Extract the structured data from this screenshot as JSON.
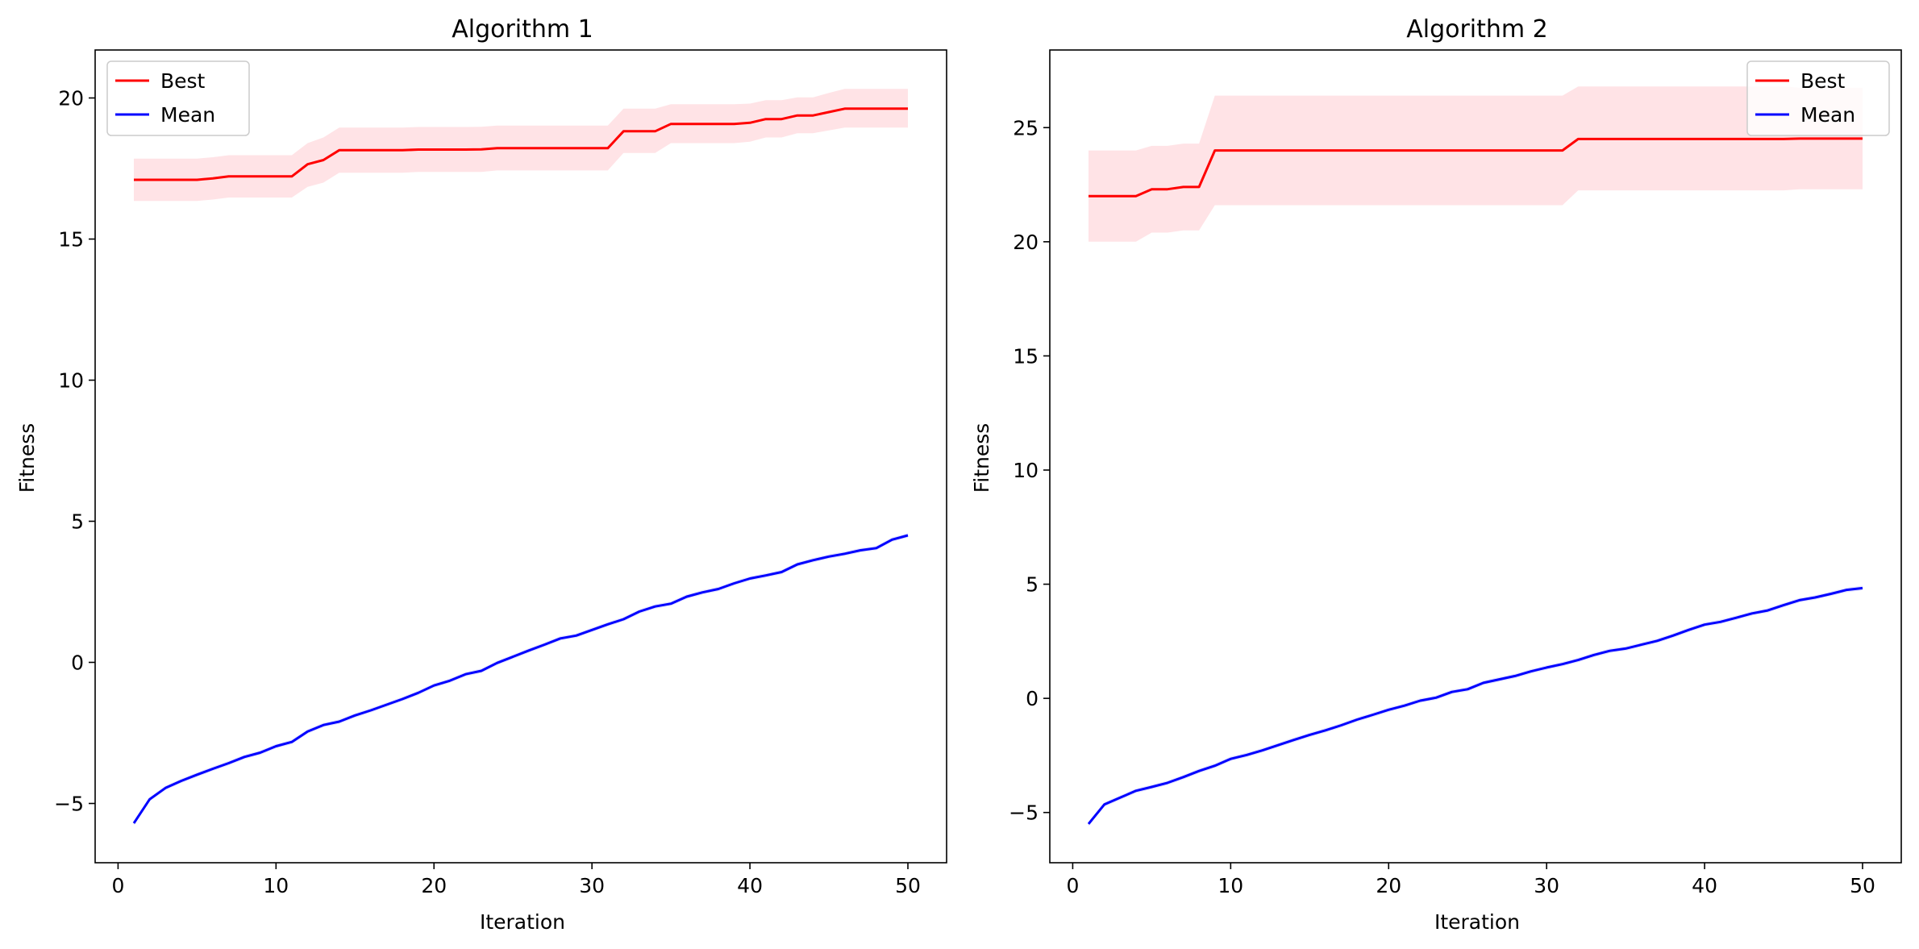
{
  "colors": {
    "best": "#ff0000",
    "mean": "#0000ff",
    "best_band": "#ffe3e6",
    "mean_band": "#e6e6ff"
  },
  "chart_data": [
    {
      "type": "line",
      "title": "Algorithm 1",
      "xlabel": "Iteration",
      "ylabel": "Fitness",
      "xlim": [
        -1.45,
        52.45
      ],
      "ylim": [
        -7.1,
        21.7
      ],
      "xticks": [
        0,
        10,
        20,
        30,
        40,
        50
      ],
      "yticks": [
        -5,
        0,
        5,
        10,
        15,
        20
      ],
      "legend": {
        "position": "top-left",
        "entries": [
          "Best",
          "Mean"
        ]
      },
      "grid": false,
      "x": [
        1,
        2,
        3,
        4,
        5,
        6,
        7,
        8,
        9,
        10,
        11,
        12,
        13,
        14,
        15,
        16,
        17,
        18,
        19,
        20,
        21,
        22,
        23,
        24,
        25,
        26,
        27,
        28,
        29,
        30,
        31,
        32,
        33,
        34,
        35,
        36,
        37,
        38,
        39,
        40,
        41,
        42,
        43,
        44,
        45,
        46,
        47,
        48,
        49,
        50
      ],
      "series": [
        {
          "name": "Best",
          "color": "#ff0000",
          "values": [
            17.1,
            17.1,
            17.1,
            17.1,
            17.1,
            17.15,
            17.22,
            17.22,
            17.22,
            17.22,
            17.22,
            17.65,
            17.8,
            18.15,
            18.15,
            18.15,
            18.15,
            18.15,
            18.17,
            18.17,
            18.17,
            18.17,
            18.18,
            18.22,
            18.22,
            18.22,
            18.22,
            18.22,
            18.22,
            18.22,
            18.22,
            18.82,
            18.82,
            18.82,
            19.08,
            19.08,
            19.08,
            19.08,
            19.08,
            19.12,
            19.25,
            19.25,
            19.38,
            19.38,
            19.5,
            19.62,
            19.62,
            19.62,
            19.62,
            19.62
          ],
          "lower": [
            16.35,
            16.35,
            16.35,
            16.35,
            16.35,
            16.4,
            16.47,
            16.47,
            16.47,
            16.47,
            16.47,
            16.85,
            17.0,
            17.35,
            17.35,
            17.35,
            17.35,
            17.35,
            17.38,
            17.38,
            17.38,
            17.38,
            17.38,
            17.43,
            17.43,
            17.43,
            17.43,
            17.43,
            17.43,
            17.43,
            17.43,
            18.05,
            18.05,
            18.05,
            18.4,
            18.4,
            18.4,
            18.4,
            18.4,
            18.45,
            18.6,
            18.6,
            18.75,
            18.75,
            18.85,
            18.95,
            18.95,
            18.95,
            18.95,
            18.95
          ],
          "upper": [
            17.85,
            17.85,
            17.85,
            17.85,
            17.85,
            17.9,
            17.97,
            17.97,
            17.97,
            17.97,
            17.97,
            18.4,
            18.6,
            18.95,
            18.95,
            18.95,
            18.95,
            18.95,
            18.97,
            18.97,
            18.97,
            18.97,
            18.98,
            19.02,
            19.02,
            19.02,
            19.02,
            19.02,
            19.02,
            19.02,
            19.02,
            19.62,
            19.62,
            19.62,
            19.78,
            19.78,
            19.78,
            19.78,
            19.78,
            19.8,
            19.92,
            19.92,
            20.02,
            20.02,
            20.18,
            20.32,
            20.32,
            20.32,
            20.32,
            20.32
          ]
        },
        {
          "name": "Mean",
          "color": "#0000ff",
          "values": [
            -5.7,
            -4.85,
            -4.45,
            -4.2,
            -3.98,
            -3.77,
            -3.57,
            -3.35,
            -3.2,
            -2.97,
            -2.82,
            -2.45,
            -2.22,
            -2.1,
            -1.88,
            -1.7,
            -1.5,
            -1.3,
            -1.08,
            -0.82,
            -0.65,
            -0.42,
            -0.3,
            -0.02,
            0.2,
            0.42,
            0.63,
            0.85,
            0.95,
            1.15,
            1.35,
            1.53,
            1.8,
            1.98,
            2.08,
            2.33,
            2.48,
            2.6,
            2.8,
            2.97,
            3.08,
            3.2,
            3.47,
            3.62,
            3.75,
            3.85,
            3.97,
            4.05,
            4.35,
            4.5
          ],
          "band": 0.08
        }
      ]
    },
    {
      "type": "line",
      "title": "Algorithm 2",
      "xlabel": "Iteration",
      "ylabel": "Fitness",
      "xlim": [
        -1.45,
        52.45
      ],
      "ylim": [
        -7.2,
        28.4
      ],
      "xticks": [
        0,
        10,
        20,
        30,
        40,
        50
      ],
      "yticks": [
        -5,
        0,
        5,
        10,
        15,
        20,
        25
      ],
      "legend": {
        "position": "top-right",
        "entries": [
          "Best",
          "Mean"
        ]
      },
      "grid": false,
      "x": [
        1,
        2,
        3,
        4,
        5,
        6,
        7,
        8,
        9,
        10,
        11,
        12,
        13,
        14,
        15,
        16,
        17,
        18,
        19,
        20,
        21,
        22,
        23,
        24,
        25,
        26,
        27,
        28,
        29,
        30,
        31,
        32,
        33,
        34,
        35,
        36,
        37,
        38,
        39,
        40,
        41,
        42,
        43,
        44,
        45,
        46,
        47,
        48,
        49,
        50
      ],
      "series": [
        {
          "name": "Best",
          "color": "#ff0000",
          "values": [
            22.0,
            22.0,
            22.0,
            22.0,
            22.3,
            22.3,
            22.4,
            22.4,
            24.0,
            24.0,
            24.0,
            24.0,
            24.0,
            24.0,
            24.0,
            24.0,
            24.0,
            24.0,
            24.0,
            24.0,
            24.0,
            24.0,
            24.0,
            24.0,
            24.0,
            24.0,
            24.0,
            24.0,
            24.0,
            24.0,
            24.0,
            24.5,
            24.5,
            24.5,
            24.5,
            24.5,
            24.5,
            24.5,
            24.5,
            24.5,
            24.5,
            24.5,
            24.5,
            24.5,
            24.5,
            24.52,
            24.52,
            24.52,
            24.52,
            24.52
          ],
          "lower": [
            20.0,
            20.0,
            20.0,
            20.0,
            20.4,
            20.4,
            20.5,
            20.5,
            21.6,
            21.6,
            21.6,
            21.6,
            21.6,
            21.6,
            21.6,
            21.6,
            21.6,
            21.6,
            21.6,
            21.6,
            21.6,
            21.6,
            21.6,
            21.6,
            21.6,
            21.6,
            21.6,
            21.6,
            21.6,
            21.6,
            21.6,
            22.25,
            22.25,
            22.25,
            22.25,
            22.25,
            22.25,
            22.25,
            22.25,
            22.25,
            22.25,
            22.25,
            22.25,
            22.25,
            22.25,
            22.3,
            22.3,
            22.3,
            22.3,
            22.3
          ],
          "upper": [
            24.0,
            24.0,
            24.0,
            24.0,
            24.2,
            24.2,
            24.3,
            24.3,
            26.4,
            26.4,
            26.4,
            26.4,
            26.4,
            26.4,
            26.4,
            26.4,
            26.4,
            26.4,
            26.4,
            26.4,
            26.4,
            26.4,
            26.4,
            26.4,
            26.4,
            26.4,
            26.4,
            26.4,
            26.4,
            26.4,
            26.4,
            26.8,
            26.8,
            26.8,
            26.8,
            26.8,
            26.8,
            26.8,
            26.8,
            26.8,
            26.8,
            26.8,
            26.8,
            26.8,
            26.8,
            26.75,
            26.75,
            26.75,
            26.75,
            26.75
          ]
        },
        {
          "name": "Mean",
          "color": "#0000ff",
          "values": [
            -5.5,
            -4.65,
            -4.35,
            -4.05,
            -3.88,
            -3.7,
            -3.45,
            -3.18,
            -2.95,
            -2.65,
            -2.48,
            -2.28,
            -2.05,
            -1.82,
            -1.6,
            -1.4,
            -1.18,
            -0.93,
            -0.72,
            -0.5,
            -0.32,
            -0.1,
            0.03,
            0.28,
            0.4,
            0.68,
            0.83,
            0.98,
            1.18,
            1.35,
            1.5,
            1.68,
            1.9,
            2.08,
            2.18,
            2.35,
            2.52,
            2.75,
            3.0,
            3.23,
            3.35,
            3.53,
            3.72,
            3.85,
            4.08,
            4.3,
            4.42,
            4.58,
            4.75,
            4.83
          ],
          "band": 0.1
        }
      ]
    }
  ]
}
